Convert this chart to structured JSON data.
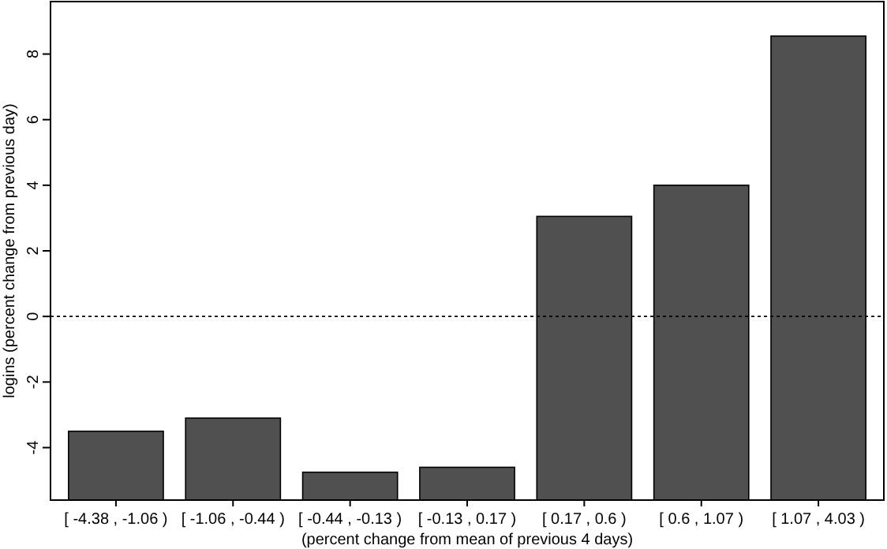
{
  "chart_data": {
    "type": "bar",
    "xlabel": "(percent change from mean of previous 4 days)",
    "ylabel": "logins (percent change from previous day)",
    "categories": [
      "[ -4.38 , -1.06 )",
      "[ -1.06 , -0.44 )",
      "[ -0.44 , -0.13 )",
      "[ -0.13 , 0.17 )",
      "[ 0.17 , 0.6 )",
      "[ 0.6 , 1.07 )",
      "[ 1.07 , 4.03 )"
    ],
    "base": [
      -5.6,
      -5.6,
      -5.6,
      -5.6,
      -5.6,
      -5.6,
      -5.6
    ],
    "values": [
      2.1,
      2.5,
      0.85,
      1.0,
      8.65,
      9.6,
      14.15
    ],
    "color": "#505050",
    "ylim": [
      -5.6,
      9.6
    ],
    "yticks": [
      -4,
      -2,
      0,
      2,
      4,
      6,
      8
    ],
    "ref_lines": [
      {
        "axis": "y",
        "value": 0,
        "line_style": "dotted",
        "color": "#000000"
      }
    ],
    "grid": false
  }
}
